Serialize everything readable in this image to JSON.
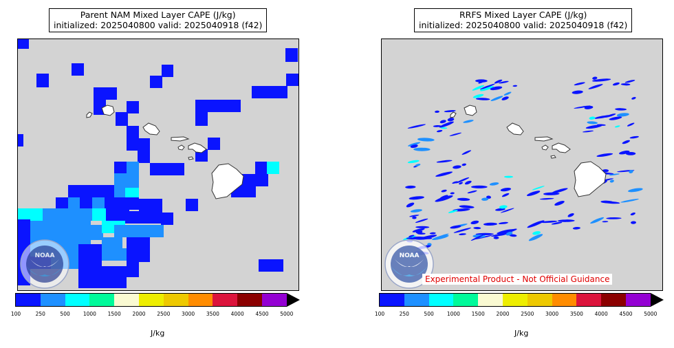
{
  "panels": [
    {
      "title_line1": "Parent NAM Mixed Layer CAPE (J/kg)",
      "title_line2": "initialized: 2025040800 valid: 2025040918 (f42)",
      "units": "J/kg",
      "logo_text": "NOAA"
    },
    {
      "title_line1": "RRFS Mixed Layer CAPE (J/kg)",
      "title_line2": "initialized: 2025040800 valid: 2025040918 (f42)",
      "units": "J/kg",
      "logo_text": "NOAA",
      "disclaimer": "Experimental Product - Not Official Guidance"
    }
  ],
  "colorbar": {
    "ticks": [
      "100",
      "250",
      "500",
      "1000",
      "1500",
      "2000",
      "2500",
      "3000",
      "3500",
      "4000",
      "4500",
      "5000"
    ],
    "colors": [
      "#0a14ff",
      "#1e90ff",
      "#00ffff",
      "#00fa9a",
      "#fafad2",
      "#eeee00",
      "#eec900",
      "#ff8c00",
      "#dc143c",
      "#8b0000",
      "#9400d3"
    ],
    "extend": "max"
  },
  "map": {
    "background": "#d3d3d3",
    "land_color": "#ffffff",
    "outline_color": "#333333"
  }
}
